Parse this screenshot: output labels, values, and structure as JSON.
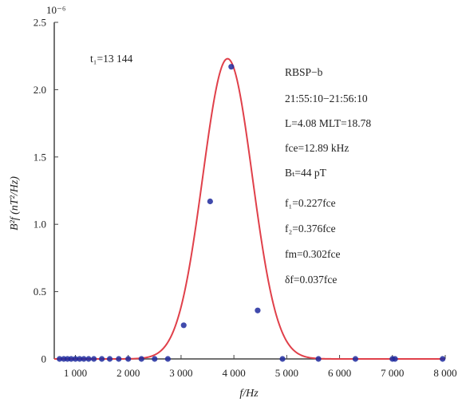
{
  "chart_data": {
    "type": "scatter",
    "xlabel": "f/Hz",
    "ylabel": "B²f (nT²/Hz)",
    "y_exponent_label": "10⁻⁶",
    "xlim": [
      600,
      8000
    ],
    "ylim": [
      0,
      2.5
    ],
    "x_ticks": [
      1000,
      2000,
      3000,
      4000,
      5000,
      6000,
      7000,
      8000
    ],
    "x_tick_labels": [
      "1 000",
      "2 000",
      "3 000",
      "4 000",
      "5 000",
      "6 000",
      "7 000",
      "8 000"
    ],
    "y_ticks": [
      0,
      0.5,
      1.0,
      1.5,
      2.0,
      2.5
    ],
    "y_tick_labels": [
      "0",
      "0.5",
      "1.0",
      "1.5",
      "2.0",
      "2.5"
    ],
    "grid": false,
    "series": [
      {
        "kind": "points",
        "color": "#1f2a9e",
        "x": [
          700,
          780,
          850,
          920,
          1000,
          1080,
          1160,
          1250,
          1350,
          1500,
          1650,
          1820,
          2000,
          2250,
          2500,
          2750,
          3050,
          3550,
          3950,
          4450,
          4920,
          5600,
          6300,
          7000,
          7050,
          7950
        ],
        "y": [
          0,
          0,
          0,
          0,
          0,
          0,
          0,
          0,
          0,
          0,
          0,
          0,
          0,
          0,
          0,
          0,
          0.25,
          1.17,
          2.17,
          0.36,
          0,
          0,
          0,
          0,
          0,
          0
        ]
      },
      {
        "kind": "gaussian-fit",
        "color": "#e0404a",
        "peak": 2.23,
        "center": 3880,
        "sigma": 470,
        "x_range": [
          600,
          8000
        ]
      }
    ],
    "annotations": {
      "top_left": "t₁=13 144",
      "lines": [
        "RBSP−b",
        "21:55:10−21:56:10",
        "L=4.08 MLT=18.78",
        "fce=12.89 kHz",
        "Bₜ=44 pT",
        "f₁=0.227fce",
        "f₂=0.376fce",
        "fm=0.302fce",
        "δf=0.037fce"
      ]
    }
  }
}
